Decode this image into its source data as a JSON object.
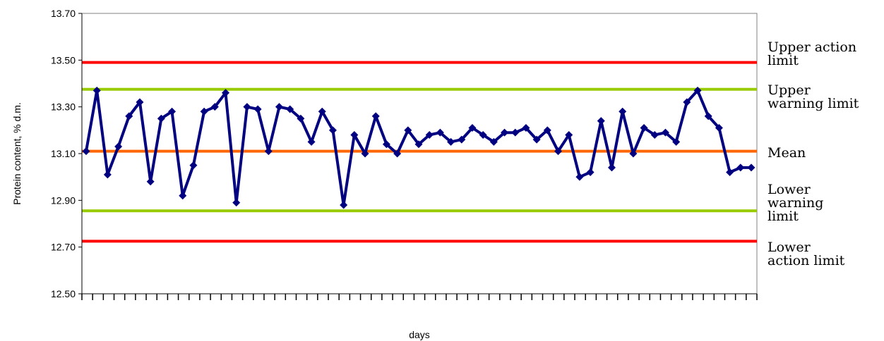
{
  "chart_data": {
    "type": "line",
    "title": "",
    "xlabel": "days",
    "ylabel": "Protein content, % d.m.",
    "ylim": [
      12.5,
      13.7
    ],
    "y_ticks": [
      "12.50",
      "12.70",
      "12.90",
      "13.10",
      "13.30",
      "13.50",
      "13.70"
    ],
    "y_tick_values": [
      12.5,
      12.7,
      12.9,
      13.1,
      13.3,
      13.5,
      13.7
    ],
    "grid": false,
    "x": [
      1,
      2,
      3,
      4,
      5,
      6,
      7,
      8,
      9,
      10,
      11,
      12,
      13,
      14,
      15,
      16,
      17,
      18,
      19,
      20,
      21,
      22,
      23,
      24,
      25,
      26,
      27,
      28,
      29,
      30,
      31,
      32,
      33,
      34,
      35,
      36,
      37,
      38,
      39,
      40,
      41,
      42,
      43,
      44,
      45,
      46,
      47,
      48,
      49,
      50,
      51,
      52,
      53,
      54,
      55,
      56,
      57,
      58,
      59,
      60,
      61,
      62,
      63
    ],
    "series": [
      {
        "name": "",
        "color": "#000080",
        "values": [
          13.11,
          13.37,
          13.01,
          13.13,
          13.26,
          13.32,
          12.98,
          13.25,
          13.28,
          12.92,
          13.05,
          13.28,
          13.3,
          13.36,
          12.89,
          13.3,
          13.29,
          13.11,
          13.3,
          13.29,
          13.25,
          13.15,
          13.28,
          13.2,
          12.88,
          13.18,
          13.1,
          13.26,
          13.14,
          13.1,
          13.2,
          13.14,
          13.18,
          13.19,
          13.15,
          13.16,
          13.21,
          13.18,
          13.15,
          13.19,
          13.19,
          13.21,
          13.16,
          13.2,
          13.11,
          13.18,
          13.0,
          13.02,
          13.24,
          13.04,
          13.28,
          13.1,
          13.21,
          13.18,
          13.19,
          13.15,
          13.32,
          13.37,
          13.26,
          13.21,
          13.02,
          13.04,
          13.04
        ]
      }
    ],
    "reference_lines": [
      {
        "label_lines": [
          "Upper action",
          "limit"
        ],
        "value": 13.49,
        "color": "#ff0000"
      },
      {
        "label_lines": [
          "Upper",
          "warning limit"
        ],
        "value": 13.375,
        "color": "#99cc00"
      },
      {
        "label_lines": [
          "Mean"
        ],
        "value": 13.11,
        "color": "#ff6600"
      },
      {
        "label_lines": [
          "Lower",
          "warning",
          "limit"
        ],
        "value": 12.855,
        "color": "#99cc00"
      },
      {
        "label_lines": [
          "Lower",
          "action limit"
        ],
        "value": 12.725,
        "color": "#ff0000"
      }
    ]
  }
}
